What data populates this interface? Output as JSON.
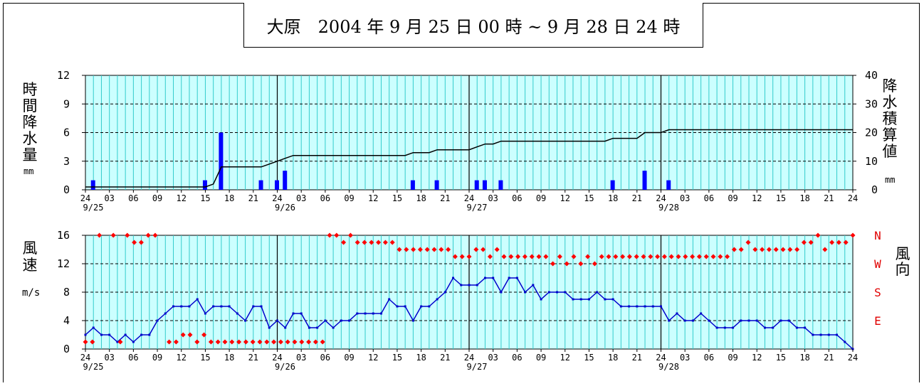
{
  "title": "大原　2004 年 9 月 25 日 00 時 ~ 9 月 28 日 24 時",
  "colors": {
    "plot_bg": "#ccffff",
    "grid": "#33cccc",
    "precip_bar": "#0000ff",
    "cumulative_line": "#000000",
    "wind_speed_line": "#0000cc",
    "wind_dir_marker": "#ff0000",
    "direction_label": "#e00000"
  },
  "x_axis": {
    "hour_labels": [
      "24",
      "03",
      "06",
      "09",
      "12",
      "15",
      "18",
      "21"
    ],
    "end_label": "24",
    "day_labels": [
      "9/25",
      "9/26",
      "9/27",
      "9/28"
    ]
  },
  "chart_data": [
    {
      "type": "bar",
      "name": "precipitation",
      "left_label": [
        "時",
        "間",
        "降",
        "水",
        "量"
      ],
      "left_unit": "mm",
      "right_label": [
        "降",
        "水",
        "積",
        "算",
        "値"
      ],
      "right_unit": "mm",
      "left_ticks": [
        "12",
        "9",
        "6",
        "3",
        "0"
      ],
      "right_ticks": [
        "40",
        "30",
        "20",
        "10",
        "0"
      ],
      "ylim": [
        0,
        12
      ],
      "y2lim": [
        0,
        40
      ],
      "x_hours": [
        0,
        96
      ],
      "grid": true,
      "hourly_precip": [
        {
          "hour": 1,
          "value": 1
        },
        {
          "hour": 15,
          "value": 1
        },
        {
          "hour": 17,
          "value": 6
        },
        {
          "hour": 22,
          "value": 1
        },
        {
          "hour": 24,
          "value": 1
        },
        {
          "hour": 25,
          "value": 2
        },
        {
          "hour": 41,
          "value": 1
        },
        {
          "hour": 44,
          "value": 1
        },
        {
          "hour": 49,
          "value": 1
        },
        {
          "hour": 50,
          "value": 1
        },
        {
          "hour": 52,
          "value": 1
        },
        {
          "hour": 66,
          "value": 1
        },
        {
          "hour": 70,
          "value": 2
        },
        {
          "hour": 73,
          "value": 1
        }
      ],
      "cumulative": [
        [
          0,
          1
        ],
        [
          15,
          1
        ],
        [
          16,
          2
        ],
        [
          17,
          8
        ],
        [
          22,
          8
        ],
        [
          23,
          9
        ],
        [
          24,
          10
        ],
        [
          25,
          11
        ],
        [
          26,
          12
        ],
        [
          40,
          12
        ],
        [
          41,
          13
        ],
        [
          43,
          13
        ],
        [
          44,
          14
        ],
        [
          48,
          14
        ],
        [
          49,
          15
        ],
        [
          50,
          16
        ],
        [
          51,
          16
        ],
        [
          52,
          17
        ],
        [
          65,
          17
        ],
        [
          66,
          18
        ],
        [
          69,
          18
        ],
        [
          70,
          20
        ],
        [
          72,
          20
        ],
        [
          73,
          21
        ],
        [
          96,
          21
        ]
      ]
    },
    {
      "type": "line",
      "name": "wind",
      "left_label": [
        "風",
        "速"
      ],
      "left_unit": "m/s",
      "right_label": [
        "風",
        "向"
      ],
      "left_ticks": [
        "16",
        "12",
        "8",
        "4",
        "0"
      ],
      "direction_ticks": [
        "N",
        "W",
        "S",
        "E"
      ],
      "ylim": [
        0,
        16
      ],
      "x_hours": [
        0,
        96
      ],
      "grid": true,
      "wind_speed": [
        2,
        3,
        2,
        2,
        1,
        2,
        1,
        2,
        2,
        4,
        5,
        6,
        6,
        6,
        7,
        5,
        6,
        6,
        6,
        5,
        4,
        6,
        6,
        3,
        4,
        3,
        5,
        5,
        3,
        3,
        4,
        3,
        4,
        4,
        5,
        5,
        5,
        5,
        7,
        6,
        6,
        4,
        6,
        6,
        7,
        8,
        10,
        9,
        9,
        9,
        10,
        10,
        8,
        10,
        10,
        8,
        9,
        7,
        8,
        8,
        8,
        7,
        7,
        7,
        8,
        7,
        7,
        6,
        6,
        6,
        6,
        6,
        6,
        4,
        5,
        4,
        4,
        5,
        4,
        3,
        3,
        3,
        4,
        4,
        4,
        3,
        3,
        4,
        4,
        3,
        3,
        2,
        2,
        2,
        2,
        1,
        0
      ],
      "wind_direction_value": [
        1,
        1,
        16,
        null,
        16,
        1,
        16,
        15,
        15,
        16,
        16,
        null,
        1,
        1,
        2,
        2,
        1,
        2,
        1,
        1,
        1,
        1,
        1,
        1,
        1,
        1,
        1,
        1,
        1,
        1,
        1,
        1,
        1,
        1,
        1,
        16,
        16,
        15,
        16,
        15,
        15,
        15,
        15,
        15,
        15,
        14,
        14,
        14,
        14,
        14,
        14,
        14,
        14,
        13,
        13,
        13,
        14,
        14,
        13,
        14,
        13,
        13,
        13,
        13,
        13,
        13,
        13,
        12,
        13,
        12,
        13,
        12,
        13,
        12,
        13,
        13,
        13,
        13,
        13,
        13,
        13,
        13,
        13,
        13,
        13,
        13,
        13,
        13,
        13,
        13,
        13,
        13,
        13,
        14,
        14,
        15,
        14,
        14,
        14,
        14,
        14,
        14,
        14,
        15,
        15,
        16,
        14,
        15,
        15,
        15,
        16
      ]
    }
  ]
}
